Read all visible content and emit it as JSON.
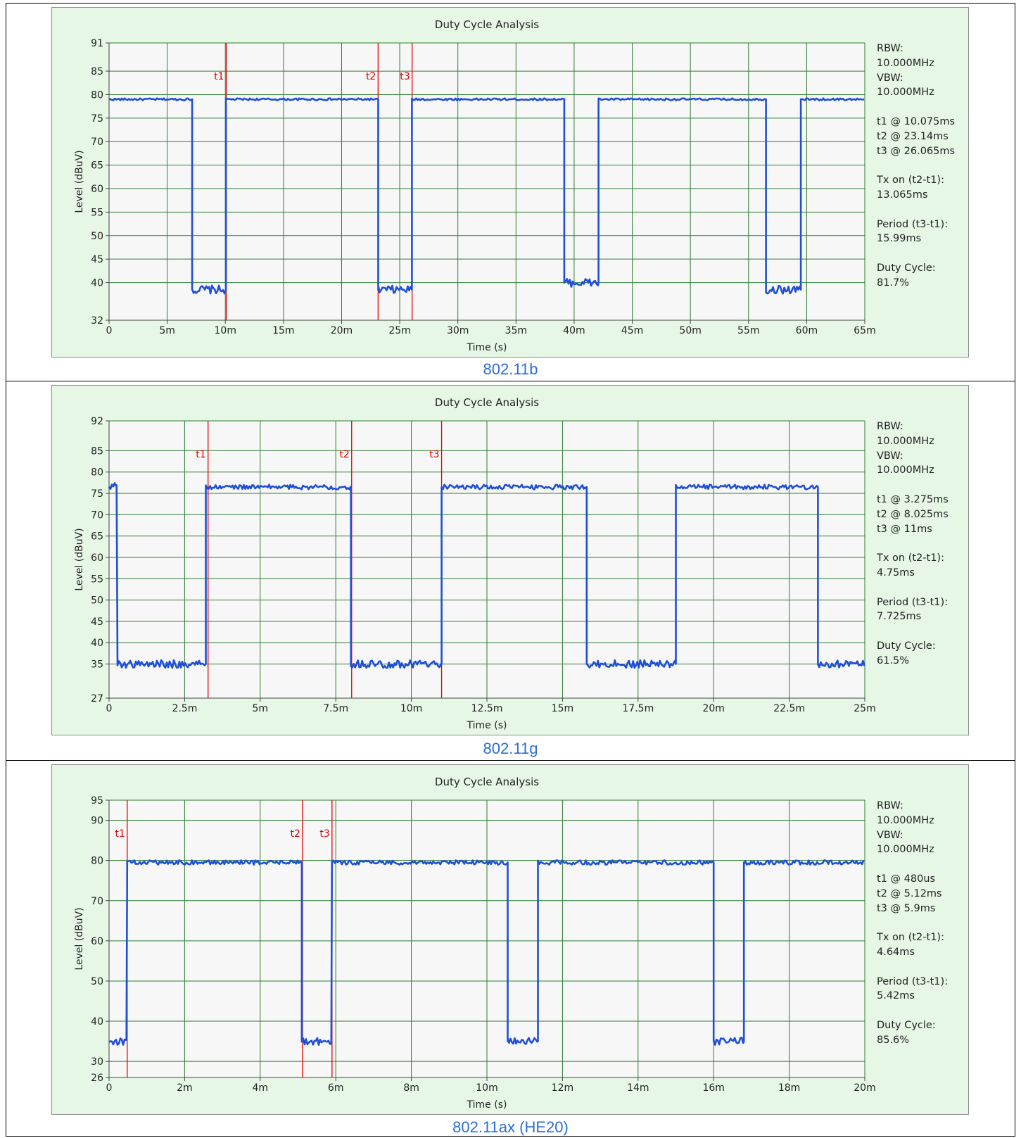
{
  "colors": {
    "trace": "#1f4fd6",
    "marker": "#e00000",
    "grid": "#2e7d32",
    "panel_bg": "#e6f7e6",
    "plot_bg": "#f7f7f7",
    "caption": "#2b6dd9"
  },
  "chart_data": [
    {
      "type": "line",
      "title": "Duty Cycle Analysis",
      "caption": "802.11b",
      "xlabel": "Time (s)",
      "ylabel": "Level (dBuV)",
      "xlim": [
        0,
        0.065
      ],
      "ylim": [
        32,
        91
      ],
      "x_ticks": [
        0,
        0.005,
        0.01,
        0.015,
        0.02,
        0.025,
        0.03,
        0.035,
        0.04,
        0.045,
        0.05,
        0.055,
        0.06,
        0.065
      ],
      "x_tick_labels": [
        "0",
        "5m",
        "10m",
        "15m",
        "20m",
        "25m",
        "30m",
        "35m",
        "40m",
        "45m",
        "50m",
        "55m",
        "60m",
        "65m"
      ],
      "y_ticks": [
        32,
        40,
        45,
        50,
        55,
        60,
        65,
        70,
        75,
        80,
        85,
        91
      ],
      "y_tick_labels": [
        "32",
        "40",
        "45",
        "50",
        "55",
        "60",
        "65",
        "70",
        "75",
        "80",
        "85",
        "91"
      ],
      "grid": true,
      "levels": {
        "high": 79,
        "low": 38.5
      },
      "trace": [
        [
          0,
          79
        ],
        [
          0.00715,
          79
        ],
        [
          0.00715,
          38.5
        ],
        [
          0.01005,
          38.5
        ],
        [
          0.01005,
          79
        ],
        [
          0.02315,
          79
        ],
        [
          0.02315,
          38.5
        ],
        [
          0.02605,
          38.5
        ],
        [
          0.02605,
          79
        ],
        [
          0.03915,
          79
        ],
        [
          0.03915,
          40
        ],
        [
          0.0421,
          40
        ],
        [
          0.0421,
          79
        ],
        [
          0.0565,
          79
        ],
        [
          0.0565,
          38.5
        ],
        [
          0.0595,
          38.5
        ],
        [
          0.0595,
          79
        ],
        [
          0.065,
          79
        ]
      ],
      "markers": [
        {
          "name": "t1",
          "x": 0.010075
        },
        {
          "name": "t2",
          "x": 0.02314
        },
        {
          "name": "t3",
          "x": 0.026065
        }
      ],
      "info": [
        [
          "RBW:",
          "10.000MHz",
          "VBW:",
          "10.000MHz"
        ],
        [
          "t1 @ 10.075ms",
          "t2 @ 23.14ms",
          "t3 @ 26.065ms"
        ],
        [
          "Tx on (t2-t1):",
          "13.065ms"
        ],
        [
          "Period (t3-t1):",
          "15.99ms"
        ],
        [
          "Duty Cycle:",
          "81.7%"
        ]
      ]
    },
    {
      "type": "line",
      "title": "Duty Cycle Analysis",
      "caption": "802.11g",
      "xlabel": "Time (s)",
      "ylabel": "Level (dBuV)",
      "xlim": [
        0,
        0.025
      ],
      "ylim": [
        27,
        92
      ],
      "x_ticks": [
        0,
        0.0025,
        0.005,
        0.0075,
        0.01,
        0.0125,
        0.015,
        0.0175,
        0.02,
        0.0225,
        0.025
      ],
      "x_tick_labels": [
        "0",
        "2.5m",
        "5m",
        "7.5m",
        "10m",
        "12.5m",
        "15m",
        "17.5m",
        "20m",
        "22.5m",
        "25m"
      ],
      "y_ticks": [
        27,
        35,
        40,
        45,
        50,
        55,
        60,
        65,
        70,
        75,
        80,
        85,
        92
      ],
      "y_tick_labels": [
        "27",
        "35",
        "40",
        "45",
        "50",
        "55",
        "60",
        "65",
        "70",
        "75",
        "80",
        "85",
        "92"
      ],
      "grid": true,
      "levels": {
        "high": 76.5,
        "low": 35
      },
      "trace": [
        [
          0,
          76.5
        ],
        [
          0.00025,
          77
        ],
        [
          0.00028,
          35
        ],
        [
          0.0032,
          35
        ],
        [
          0.0032,
          76.5
        ],
        [
          0.008,
          76.5
        ],
        [
          0.008,
          35
        ],
        [
          0.011,
          35
        ],
        [
          0.011,
          76.5
        ],
        [
          0.0158,
          76.5
        ],
        [
          0.0158,
          35
        ],
        [
          0.01875,
          35
        ],
        [
          0.01875,
          76.5
        ],
        [
          0.02345,
          76.5
        ],
        [
          0.02345,
          35
        ],
        [
          0.025,
          35
        ]
      ],
      "markers": [
        {
          "name": "t1",
          "x": 0.003275
        },
        {
          "name": "t2",
          "x": 0.008025
        },
        {
          "name": "t3",
          "x": 0.011
        }
      ],
      "info": [
        [
          "RBW:",
          "10.000MHz",
          "VBW:",
          "10.000MHz"
        ],
        [
          "t1 @ 3.275ms",
          "t2 @ 8.025ms",
          "t3 @ 11ms"
        ],
        [
          "Tx on (t2-t1):",
          "4.75ms"
        ],
        [
          "Period (t3-t1):",
          "7.725ms"
        ],
        [
          "Duty Cycle:",
          "61.5%"
        ]
      ]
    },
    {
      "type": "line",
      "title": "Duty Cycle Analysis",
      "caption": "802.11ax (HE20)",
      "xlabel": "Time (s)",
      "ylabel": "Level (dBuV)",
      "xlim": [
        0,
        0.02
      ],
      "ylim": [
        26,
        95
      ],
      "x_ticks": [
        0,
        0.002,
        0.004,
        0.006,
        0.008,
        0.01,
        0.012,
        0.014,
        0.016,
        0.018,
        0.02
      ],
      "x_tick_labels": [
        "0",
        "2m",
        "4m",
        "6m",
        "8m",
        "10m",
        "12m",
        "14m",
        "16m",
        "18m",
        "20m"
      ],
      "y_ticks": [
        26,
        30,
        40,
        50,
        60,
        70,
        80,
        90,
        95
      ],
      "y_tick_labels": [
        "26",
        "30",
        "40",
        "50",
        "60",
        "70",
        "80",
        "90",
        "95"
      ],
      "grid": true,
      "levels": {
        "high": 79.5,
        "low": 35
      },
      "trace": [
        [
          0,
          35
        ],
        [
          0.00046,
          35
        ],
        [
          0.00048,
          79.5
        ],
        [
          0.0051,
          79.5
        ],
        [
          0.0051,
          35
        ],
        [
          0.00588,
          35
        ],
        [
          0.0059,
          79.5
        ],
        [
          0.01055,
          79.5
        ],
        [
          0.01055,
          35
        ],
        [
          0.01135,
          35
        ],
        [
          0.01135,
          79.5
        ],
        [
          0.016,
          79.5
        ],
        [
          0.016,
          35
        ],
        [
          0.0168,
          35
        ],
        [
          0.0168,
          79.5
        ],
        [
          0.02,
          79.5
        ]
      ],
      "markers": [
        {
          "name": "t1",
          "x": 0.00048
        },
        {
          "name": "t2",
          "x": 0.00512
        },
        {
          "name": "t3",
          "x": 0.0059
        }
      ],
      "info": [
        [
          "RBW:",
          "10.000MHz",
          "VBW:",
          "10.000MHz"
        ],
        [
          "t1 @ 480us",
          "t2 @ 5.12ms",
          "t3 @ 5.9ms"
        ],
        [
          "Tx on (t2-t1):",
          "4.64ms"
        ],
        [
          "Period (t3-t1):",
          "5.42ms"
        ],
        [
          "Duty Cycle:",
          "85.6%"
        ]
      ]
    }
  ]
}
